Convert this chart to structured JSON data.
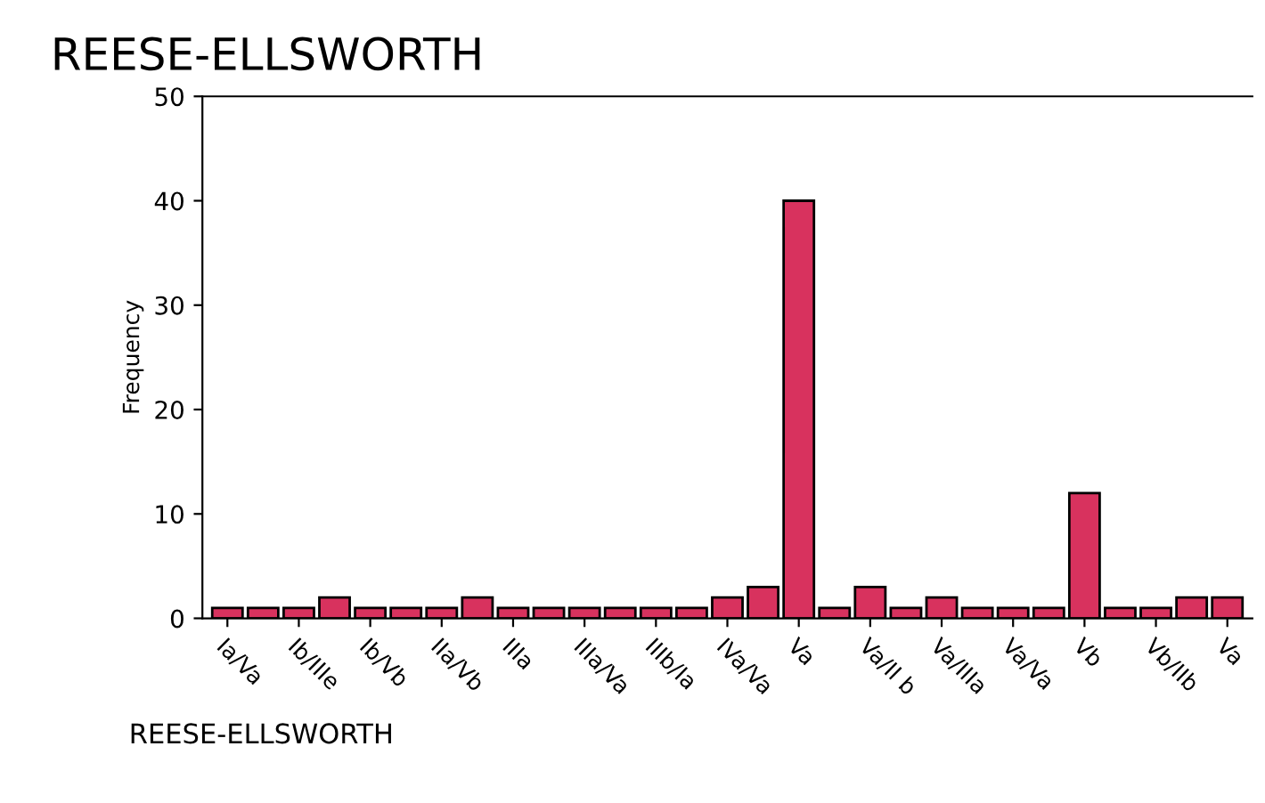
{
  "chart_data": {
    "type": "bar",
    "title": "REESE-ELLSWORTH",
    "xlabel": "REESE-ELLSWORTH",
    "ylabel": "Frequency",
    "categories": [
      "Ia/Va",
      null,
      "Ib/IIIe",
      null,
      "Ib/Vb",
      null,
      "IIa/Vb",
      null,
      "IIIa",
      null,
      "IIIa/Va",
      null,
      "IIIb/Ia",
      null,
      "IVa/Va",
      null,
      "Va",
      null,
      "Va/II b",
      null,
      "Va/IIIa",
      null,
      "Va/Va",
      null,
      "Vb",
      null,
      "Vb/IIb",
      null,
      "Va"
    ],
    "values": [
      1,
      1,
      1,
      2,
      1,
      1,
      1,
      2,
      1,
      1,
      1,
      1,
      1,
      1,
      2,
      3,
      40,
      1,
      3,
      1,
      2,
      1,
      1,
      1,
      12,
      1,
      1,
      2,
      2
    ],
    "color": "#d8325e",
    "ylim": [
      0,
      50
    ],
    "yticks": [
      0,
      10,
      20,
      30,
      40,
      50
    ],
    "grid": false,
    "legend": false
  }
}
